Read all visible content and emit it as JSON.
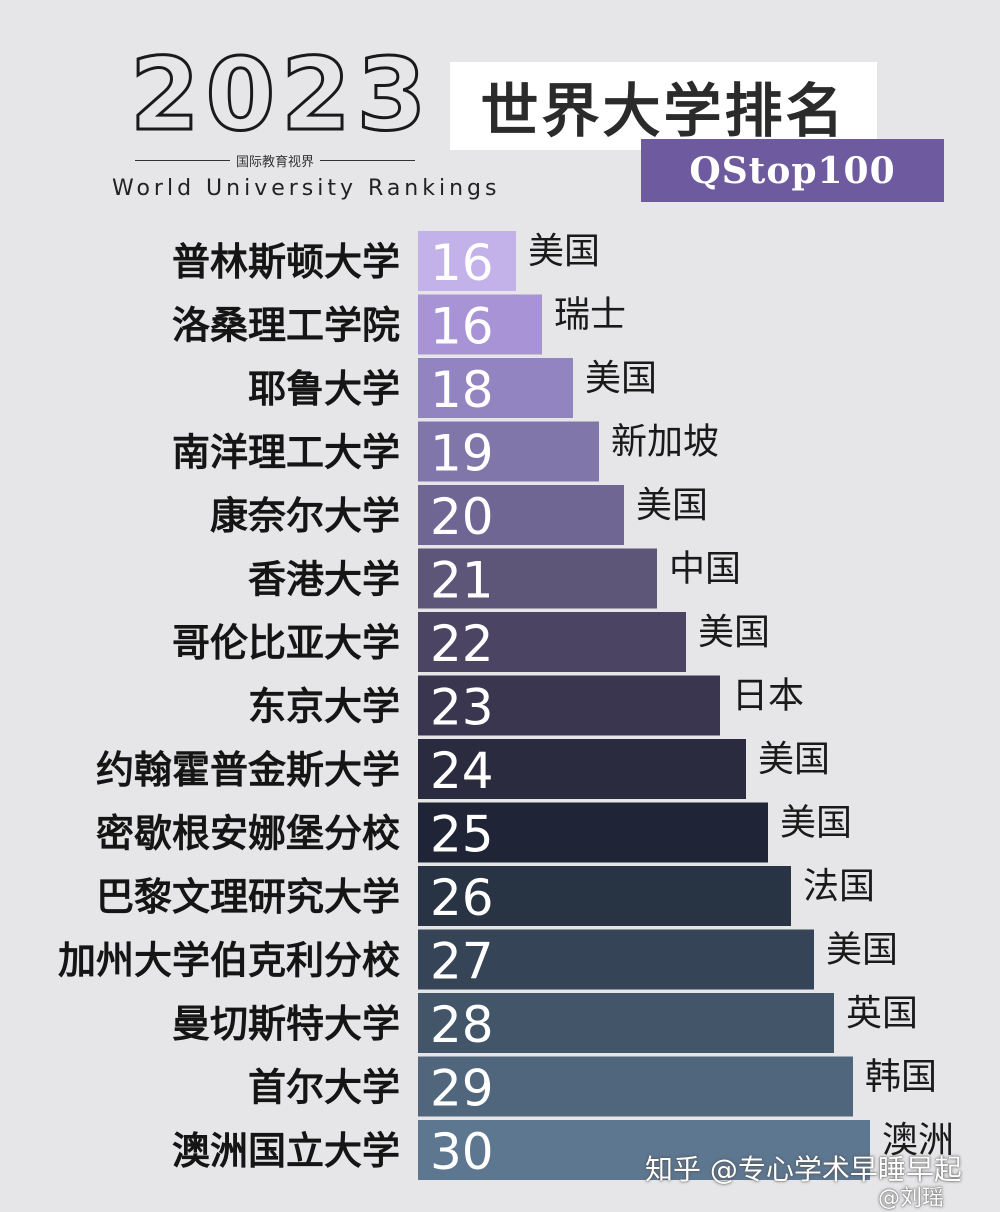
{
  "header": {
    "year": "2023",
    "year_sub": "国际教育视界",
    "subtitle_en": "World University Rankings",
    "title_cn": "世界大学排名",
    "tag": "QStop100"
  },
  "watermark": {
    "line1": "知乎 @专心学术早睡早起",
    "line2": "@刘瑶"
  },
  "chart_data": {
    "type": "bar",
    "orientation": "horizontal",
    "categories": [
      "普林斯顿大学",
      "洛桑理工学院",
      "耶鲁大学",
      "南洋理工大学",
      "康奈尔大学",
      "香港大学",
      "哥伦比亚大学",
      "东京大学",
      "约翰霍普金斯大学",
      "密歇根安娜堡分校",
      "巴黎文理研究大学",
      "加州大学伯克利分校",
      "曼切斯特大学",
      "首尔大学",
      "澳洲国立大学"
    ],
    "values": [
      16,
      16,
      18,
      19,
      20,
      21,
      22,
      23,
      24,
      25,
      26,
      27,
      28,
      29,
      30
    ],
    "countries": [
      "美国",
      "瑞士",
      "美国",
      "新加坡",
      "美国",
      "中国",
      "美国",
      "日本",
      "美国",
      "美国",
      "法国",
      "美国",
      "英国",
      "韩国",
      "澳洲"
    ],
    "colors": [
      "#c3b1ea",
      "#a893d6",
      "#9284c0",
      "#8176aa",
      "#6f6693",
      "#5e5679",
      "#4b4563",
      "#3a3650",
      "#2a2b3e",
      "#1f2536",
      "#283443",
      "#354456",
      "#425569",
      "#50667d",
      "#5d7791"
    ]
  }
}
